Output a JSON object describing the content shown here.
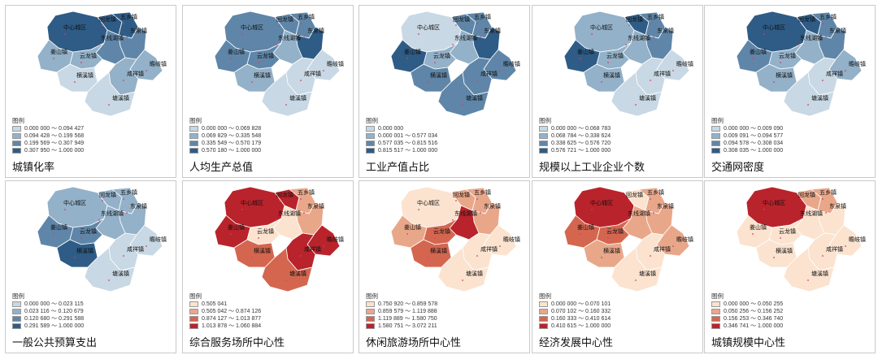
{
  "towns": [
    "中心城区",
    "回龙镇",
    "五乡镇",
    "东泉镇",
    "东线湖镇",
    "姜山镇",
    "云龙镇",
    "横溪镇",
    "瞻岐镇",
    "咸祥镇",
    "塘溪镇"
  ],
  "legend_title": "图例",
  "palettes": {
    "blue": [
      "#c8d8e4",
      "#93b1c8",
      "#5f86a8",
      "#2e5c86"
    ],
    "red": [
      "#fbe3cf",
      "#e9a78a",
      "#d46650",
      "#b9232b"
    ]
  },
  "panels": [
    {
      "caption": "城镇化率",
      "palette": "blue",
      "legend": [
        "0.000 000 ～ 0.094 427",
        "0.094 428 ～ 0.199 568",
        "0.199 569 ～ 0.307 949",
        "0.307 950 ～ 1.000 000"
      ],
      "classes": {
        "中心城区": 3,
        "回龙镇": 3,
        "五乡镇": 3,
        "东泉镇": 2,
        "东线湖镇": 2,
        "姜山镇": 1,
        "云龙镇": 1,
        "横溪镇": 0,
        "瞻岐镇": 1,
        "咸祥镇": 1,
        "塘溪镇": 0
      }
    },
    {
      "caption": "人均生产总值",
      "palette": "blue",
      "legend": [
        "0.000 000 ～ 0.069 828",
        "0.069 829 ～ 0.335 548",
        "0.335 549 ～ 0.570 179",
        "0.570 180 ～ 1.000 000"
      ],
      "classes": {
        "中心城区": 2,
        "回龙镇": 2,
        "五乡镇": 2,
        "东泉镇": 3,
        "东线湖镇": 1,
        "姜山镇": 2,
        "云龙镇": 2,
        "横溪镇": 1,
        "瞻岐镇": 0,
        "咸祥镇": 0,
        "塘溪镇": 0
      }
    },
    {
      "caption": "工业产值占比",
      "palette": "blue",
      "legend": [
        "0.000 000",
        "0.000 001 ～ 0.577 034",
        "0.577 035 ～ 0.815 516",
        "0.815 517 ～ 1.000 000"
      ],
      "classes": {
        "中心城区": 0,
        "回龙镇": 2,
        "五乡镇": 2,
        "东泉镇": 3,
        "东线湖镇": 1,
        "姜山镇": 3,
        "云龙镇": 1,
        "横溪镇": 2,
        "瞻岐镇": 2,
        "咸祥镇": 2,
        "塘溪镇": 2
      }
    },
    {
      "caption": "规模以上工业企业个数",
      "palette": "blue",
      "legend": [
        "0.000 000 ～ 0.068 783",
        "0.068 784 ～ 0.338 624",
        "0.338 625 ～ 0.576 720",
        "0.576 721 ～ 1.000 000"
      ],
      "classes": {
        "中心城区": 1,
        "回龙镇": 3,
        "五乡镇": 2,
        "东泉镇": 2,
        "东线湖镇": 1,
        "姜山镇": 3,
        "云龙镇": 1,
        "横溪镇": 1,
        "瞻岐镇": 0,
        "咸祥镇": 0,
        "塘溪镇": 0
      }
    },
    {
      "caption": "交通网密度",
      "palette": "blue",
      "legend": [
        "0.000 000 ～ 0.009 090",
        "0.009 091 ～ 0.094 577",
        "0.094 578 ～ 0.308 034",
        "0.308 035 ～ 1.000 000"
      ],
      "classes": {
        "中心城区": 3,
        "回龙镇": 3,
        "五乡镇": 2,
        "东泉镇": 2,
        "东线湖镇": 1,
        "姜山镇": 2,
        "云龙镇": 1,
        "横溪镇": 1,
        "瞻岐镇": 1,
        "咸祥镇": 0,
        "塘溪镇": 0
      }
    },
    {
      "caption": "一般公共预算支出",
      "palette": "blue",
      "legend": [
        "0.000 000 ～ 0.023 115",
        "0.023 116 ～ 0.120 679",
        "0.120 680 ～ 0.291 588",
        "0.291 589 ～ 1.000 000"
      ],
      "classes": {
        "中心城区": 1,
        "回龙镇": 1,
        "五乡镇": 1,
        "东泉镇": 1,
        "东线湖镇": 1,
        "姜山镇": 2,
        "云龙镇": 2,
        "横溪镇": 3,
        "瞻岐镇": 0,
        "咸祥镇": 0,
        "塘溪镇": 0
      }
    },
    {
      "caption": "综合服务场所中心性",
      "palette": "red",
      "legend": [
        "0.505 041",
        "0.505 042 ～ 0.874 126",
        "0.874 127 ～ 1.013 877",
        "1.013 878 ～ 1.060 884"
      ],
      "classes": {
        "中心城区": 3,
        "回龙镇": 3,
        "五乡镇": 1,
        "东泉镇": 1,
        "东线湖镇": 0,
        "姜山镇": 3,
        "云龙镇": 0,
        "横溪镇": 2,
        "瞻岐镇": 3,
        "咸祥镇": 3,
        "塘溪镇": 2
      }
    },
    {
      "caption": "休闲旅游场所中心性",
      "palette": "red",
      "legend": [
        "0.750 920 ～ 0.859 578",
        "0.859 579 ～ 1.119 888",
        "1.119 889 ～ 1.580 750",
        "1.580 751 ～ 3.072 211"
      ],
      "classes": {
        "中心城区": 0,
        "回龙镇": 1,
        "五乡镇": 1,
        "东泉镇": 1,
        "东线湖镇": 3,
        "姜山镇": 1,
        "云龙镇": 2,
        "横溪镇": 2,
        "瞻岐镇": 0,
        "咸祥镇": 0,
        "塘溪镇": 0
      }
    },
    {
      "caption": "经济发展中心性",
      "palette": "red",
      "legend": [
        "0.000 000 ～ 0.070 101",
        "0.070 102 ～ 0.160 332",
        "0.160 333 ～ 0.410 614",
        "0.410 615 ～ 1.000 000"
      ],
      "classes": {
        "中心城区": 3,
        "回龙镇": 0,
        "五乡镇": 1,
        "东泉镇": 1,
        "东线湖镇": 1,
        "姜山镇": 2,
        "云龙镇": 2,
        "横溪镇": 1,
        "瞻岐镇": 1,
        "咸祥镇": 0,
        "塘溪镇": 0
      }
    },
    {
      "caption": "城镇规模中心性",
      "palette": "red",
      "legend": [
        "0.000 000 ～ 0.050 255",
        "0.050 256 ～ 0.156 252",
        "0.156 253 ～ 0.346 740",
        "0.346 741 ～ 1.000 000"
      ],
      "classes": {
        "中心城区": 3,
        "回龙镇": 1,
        "五乡镇": 1,
        "东泉镇": 0,
        "东线湖镇": 0,
        "姜山镇": 0,
        "云龙镇": 0,
        "横溪镇": 0,
        "瞻岐镇": 0,
        "咸祥镇": 0,
        "塘溪镇": 0
      }
    }
  ]
}
